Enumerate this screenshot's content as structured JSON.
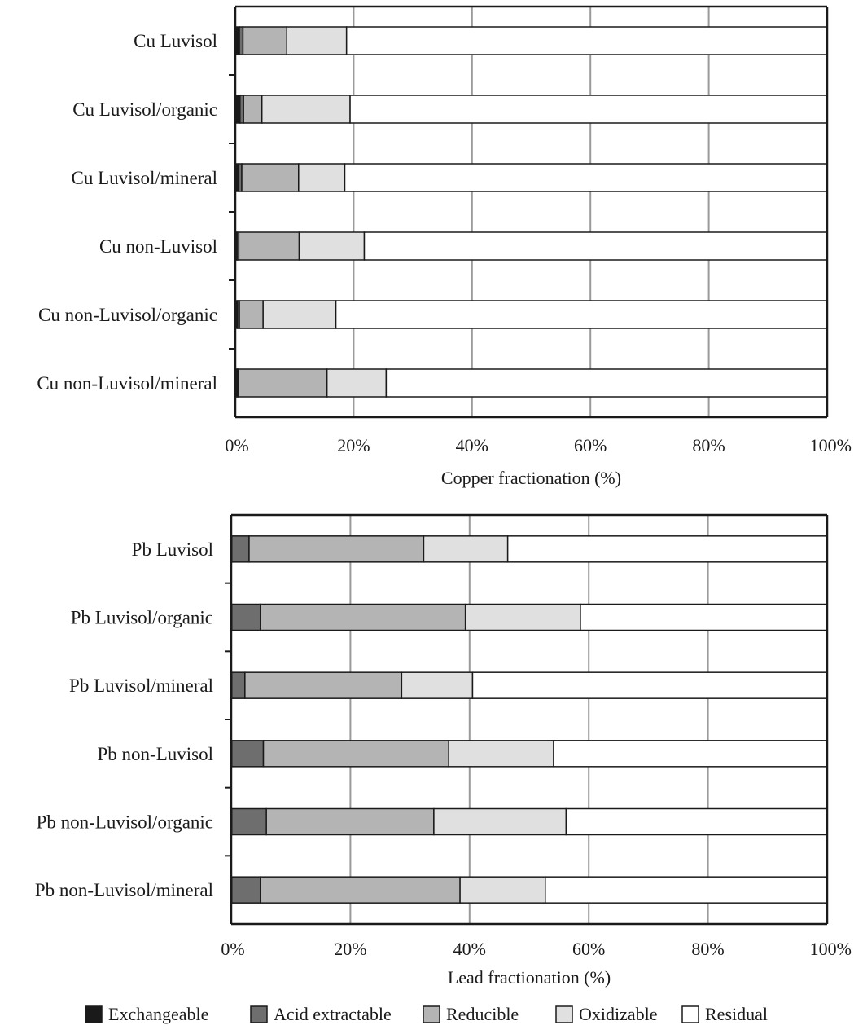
{
  "chart_data": [
    {
      "type": "bar",
      "stacked": true,
      "orientation": "horizontal",
      "xlabel": "Copper fractionation (%)",
      "xlim": [
        0,
        100
      ],
      "x_ticks": [
        "0%",
        "20%",
        "40%",
        "60%",
        "80%",
        "100%"
      ],
      "grid": "vertical",
      "categories": [
        "Cu Luvisol",
        "Cu Luvisol/organic",
        "Cu Luvisol/mineral",
        "Cu non-Luvisol",
        "Cu non-Luvisol/organic",
        "Cu non-Luvisol/mineral"
      ],
      "series": [
        {
          "name": "Exchangeable",
          "values": [
            0.7,
            0.8,
            0.6,
            0.3,
            0.4,
            0.3
          ]
        },
        {
          "name": "Acid extractable",
          "values": [
            0.6,
            0.6,
            0.5,
            0.3,
            0.3,
            0.2
          ]
        },
        {
          "name": "Reducible",
          "values": [
            7.4,
            3.1,
            9.6,
            10.2,
            4.0,
            15.0
          ]
        },
        {
          "name": "Oxidizable",
          "values": [
            10.1,
            14.9,
            7.8,
            11.0,
            12.3,
            10.0
          ]
        },
        {
          "name": "Residual",
          "values": [
            81.2,
            80.6,
            81.5,
            78.2,
            83.0,
            74.5
          ]
        }
      ]
    },
    {
      "type": "bar",
      "stacked": true,
      "orientation": "horizontal",
      "xlabel": "Lead fractionation (%)",
      "xlim": [
        0,
        100
      ],
      "x_ticks": [
        "0%",
        "20%",
        "40%",
        "60%",
        "80%",
        "100%"
      ],
      "grid": "vertical",
      "categories": [
        "Pb Luvisol",
        "Pb Luvisol/organic",
        "Pb Luvisol/mineral",
        "Pb non-Luvisol",
        "Pb non-Luvisol/organic",
        "Pb non-Luvisol/mineral"
      ],
      "series": [
        {
          "name": "Exchangeable",
          "values": [
            0.1,
            0.1,
            0.1,
            0.1,
            0.1,
            0.1
          ]
        },
        {
          "name": "Acid extractable",
          "values": [
            2.9,
            4.8,
            2.2,
            5.3,
            5.8,
            4.8
          ]
        },
        {
          "name": "Reducible",
          "values": [
            29.3,
            34.4,
            26.3,
            31.1,
            28.1,
            33.5
          ]
        },
        {
          "name": "Oxidizable",
          "values": [
            14.1,
            19.3,
            11.9,
            17.6,
            22.2,
            14.3
          ]
        },
        {
          "name": "Residual",
          "values": [
            53.6,
            41.4,
            59.5,
            45.9,
            43.8,
            47.3
          ]
        }
      ]
    }
  ],
  "legend": {
    "placement": "bottom",
    "items": [
      {
        "label": "Exchangeable",
        "color": "#1a1a1a"
      },
      {
        "label": "Acid extractable",
        "color": "#6e6e6e"
      },
      {
        "label": "Reducible",
        "color": "#b4b4b4"
      },
      {
        "label": "Oxidizable",
        "color": "#e0e0e0"
      },
      {
        "label": "Residual",
        "color": "#ffffff"
      }
    ]
  },
  "colors": {
    "axis": "#1a1a1a",
    "grid": "#9a9a9a",
    "bar_stroke": "#1a1a1a"
  }
}
